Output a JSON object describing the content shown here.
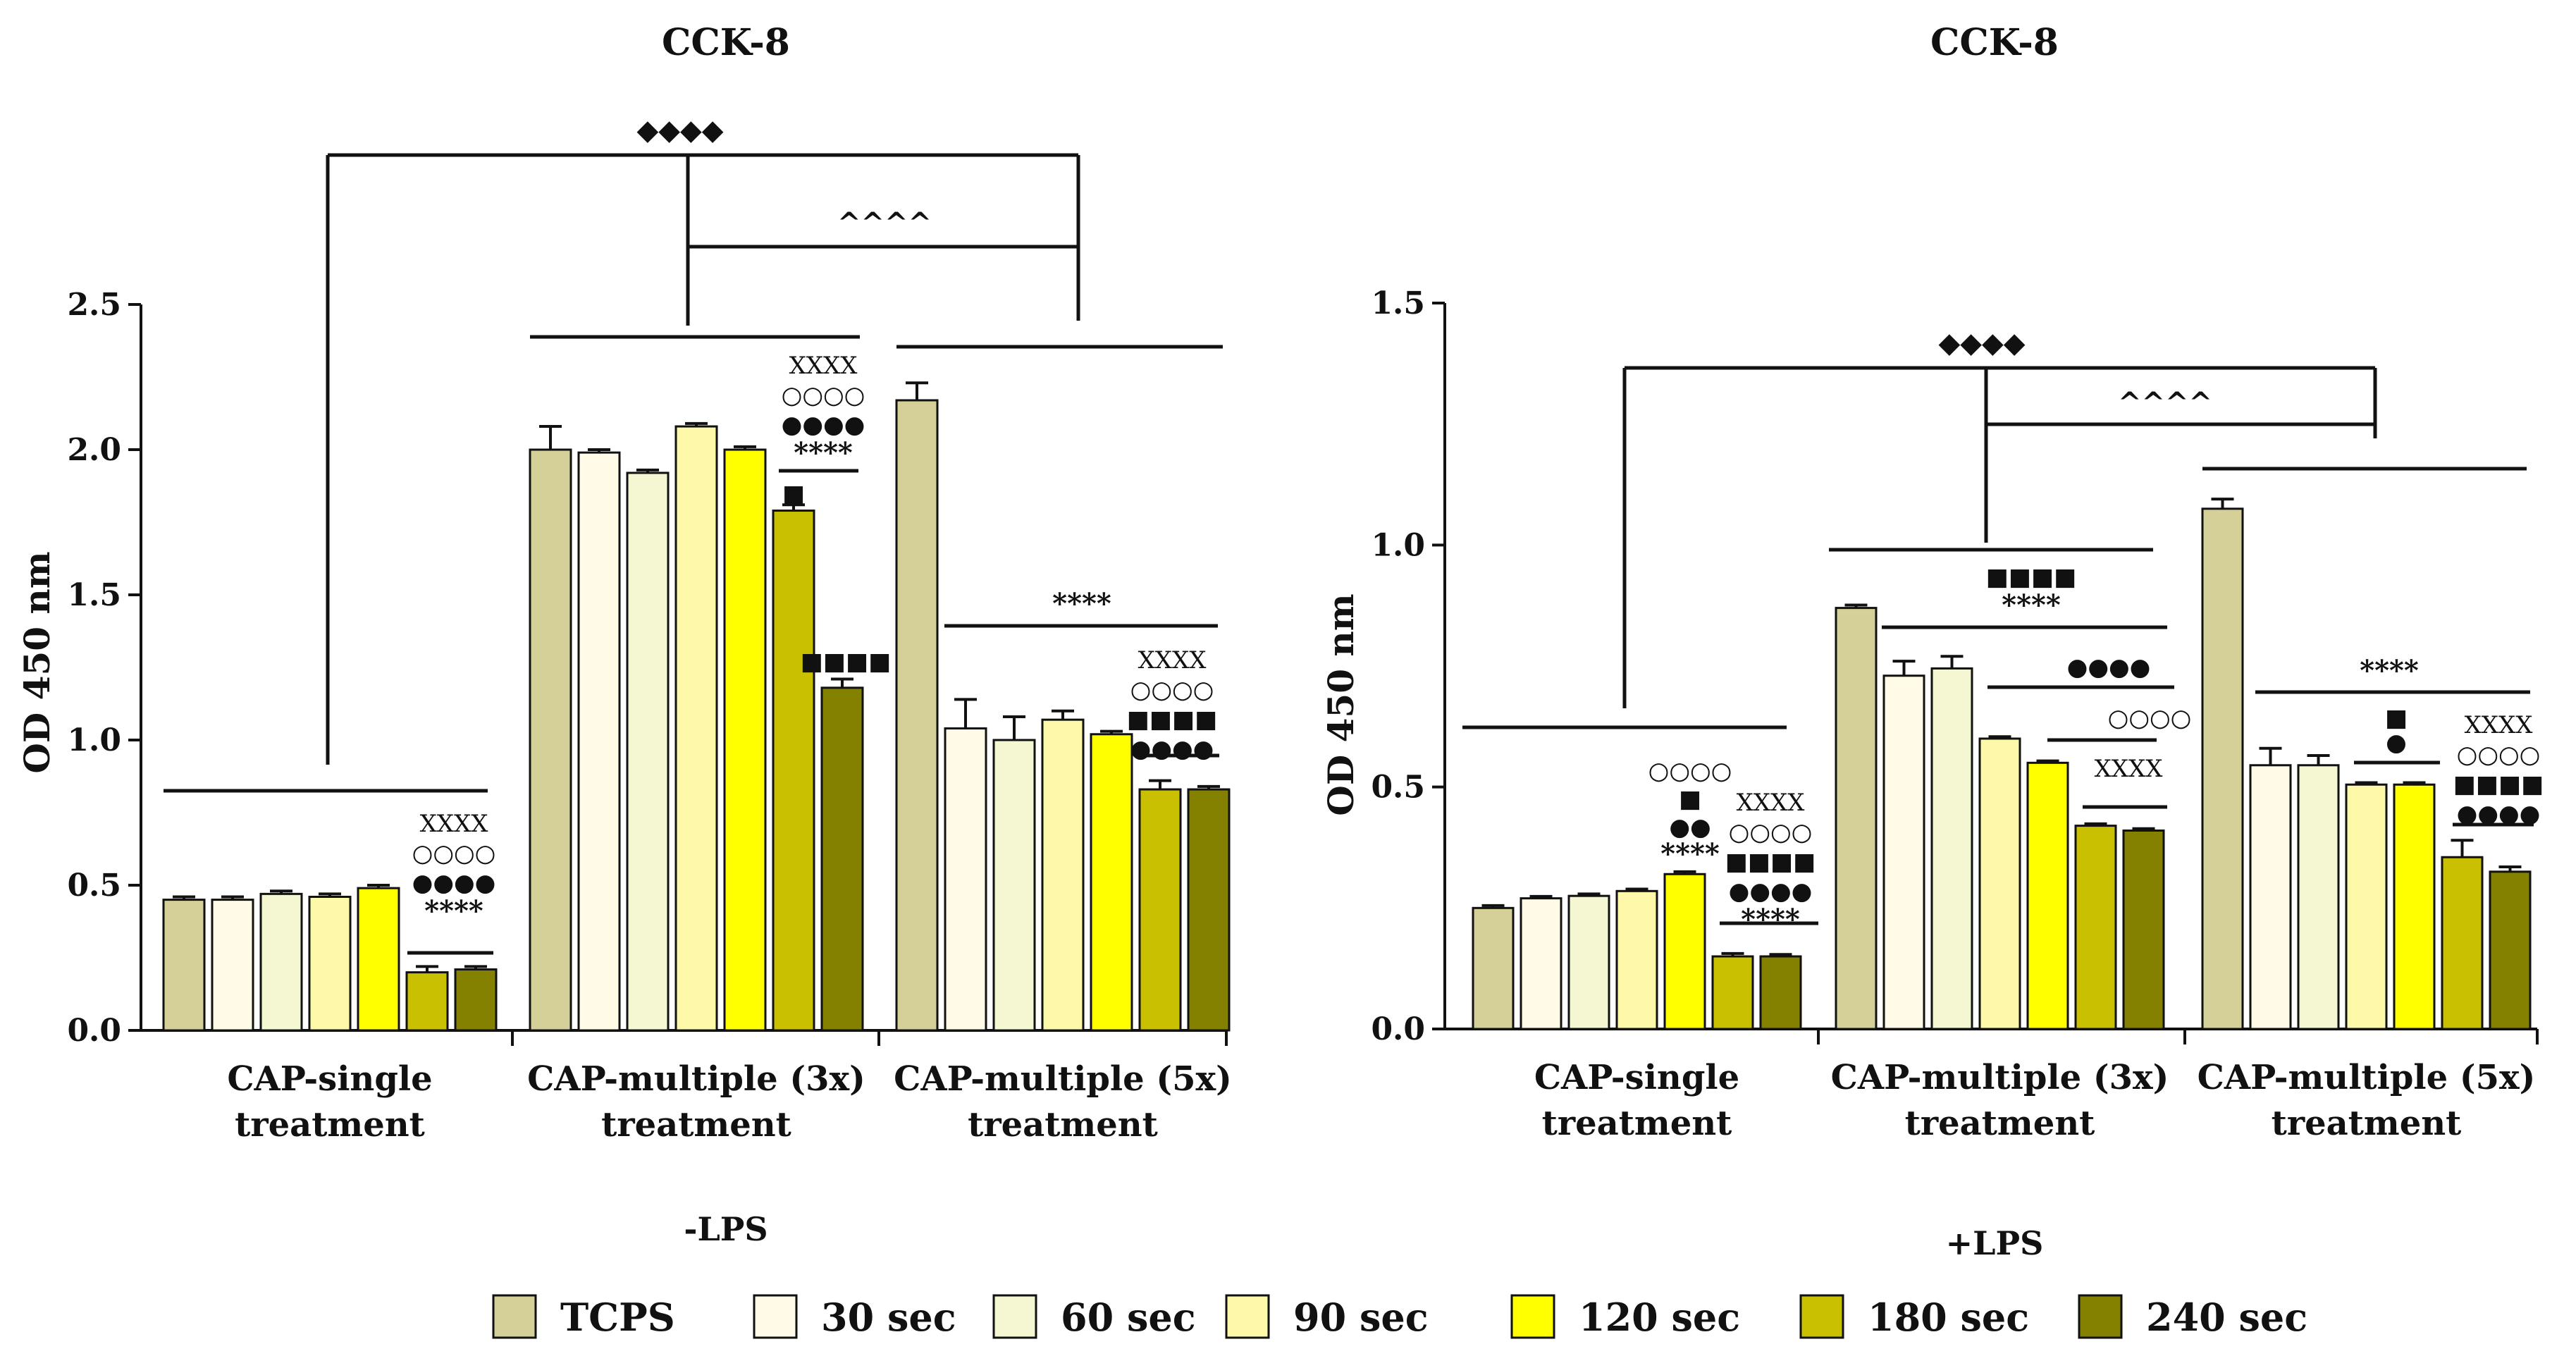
{
  "chart_data": [
    {
      "type": "bar",
      "title": "CCK-8",
      "condition": "-LPS",
      "ylabel": "OD 450 nm",
      "ylim": [
        0,
        2.5
      ],
      "yticks": [
        "0.0",
        "0.5",
        "1.0",
        "1.5",
        "2.0",
        "2.5"
      ],
      "groups": [
        {
          "label_line1": "CAP-single",
          "label_line2": "treatment",
          "values": [
            0.45,
            0.45,
            0.47,
            0.46,
            0.49,
            0.2,
            0.21
          ],
          "errors": [
            0.01,
            0.01,
            0.01,
            0.01,
            0.01,
            0.02,
            0.01
          ]
        },
        {
          "label_line1": "CAP-multiple (3x)",
          "label_line2": "treatment",
          "values": [
            2.0,
            1.99,
            1.92,
            2.08,
            2.0,
            1.79,
            1.18
          ],
          "errors": [
            0.08,
            0.01,
            0.01,
            0.01,
            0.01,
            0.02,
            0.03
          ]
        },
        {
          "label_line1": "CAP-multiple (5x)",
          "label_line2": "treatment",
          "values": [
            2.17,
            1.04,
            1.0,
            1.07,
            1.02,
            0.83,
            0.83
          ],
          "errors": [
            0.06,
            0.1,
            0.08,
            0.03,
            0.01,
            0.03,
            0.01
          ]
        }
      ],
      "annotations": {
        "top_diamonds": "◆◆◆◆",
        "top_carets": "^^^^",
        "g1_stack": [
          "XXXX",
          "○○○○",
          "●●●●",
          "****"
        ],
        "g1_squares": "■■■■",
        "g2_stack": [
          "XXXX",
          "○○○○",
          "●●●●",
          "****"
        ],
        "g2_square_single": "■",
        "g2_squares": "■■■■",
        "g3_stars": "****",
        "g3_stack": [
          "XXXX",
          "○○○○",
          "■■■■",
          "●●●●"
        ]
      }
    },
    {
      "type": "bar",
      "title": "CCK-8",
      "condition": "+LPS",
      "ylabel": "OD 450 nm",
      "ylim": [
        0,
        1.5
      ],
      "yticks": [
        "0.0",
        "0.5",
        "1.0",
        "1.5"
      ],
      "groups": [
        {
          "label_line1": "CAP-single",
          "label_line2": "treatment",
          "values": [
            0.25,
            0.27,
            0.275,
            0.285,
            0.32,
            0.15,
            0.15
          ],
          "errors": [
            0.005,
            0.004,
            0.004,
            0.004,
            0.005,
            0.006,
            0.004
          ]
        },
        {
          "label_line1": "CAP-multiple (3x)",
          "label_line2": "treatment",
          "values": [
            0.87,
            0.73,
            0.745,
            0.6,
            0.55,
            0.42,
            0.41
          ],
          "errors": [
            0.006,
            0.03,
            0.025,
            0.004,
            0.004,
            0.004,
            0.004
          ]
        },
        {
          "label_line1": "CAP-multiple (5x)",
          "label_line2": "treatment",
          "values": [
            1.075,
            0.545,
            0.545,
            0.505,
            0.505,
            0.355,
            0.325
          ],
          "errors": [
            0.02,
            0.035,
            0.02,
            0.004,
            0.004,
            0.035,
            0.01
          ]
        }
      ],
      "annotations": {
        "top_diamonds": "◆◆◆◆",
        "top_carets": "^^^^",
        "g1_stack_a": [
          "○○○○",
          "■",
          "●●",
          "****"
        ],
        "g1_stack_b": [
          "XXXX",
          "○○○○",
          "■■■■",
          "●●●●",
          "****"
        ],
        "g2_squares": "■■■■",
        "g2_stars": "****",
        "g2_dots": "●●●●",
        "g2_circles": "○○○○",
        "g2_xs": "XXXX",
        "g3_stars": "****",
        "g3_square": "■",
        "g3_dot": "●",
        "g3_stack": [
          "XXXX",
          "○○○○",
          "■■■■",
          "●●●●"
        ]
      }
    }
  ],
  "legend": {
    "items": [
      {
        "label": "TCPS",
        "color": "#d4d098"
      },
      {
        "label": "30 sec",
        "color": "#fffbe6"
      },
      {
        "label": "60 sec",
        "color": "#f4f7d2"
      },
      {
        "label": "90 sec",
        "color": "#fdf9a8"
      },
      {
        "label": "120 sec",
        "color": "#ffff00"
      },
      {
        "label": "180 sec",
        "color": "#c8c000"
      },
      {
        "label": "240 sec",
        "color": "#848000"
      }
    ]
  }
}
